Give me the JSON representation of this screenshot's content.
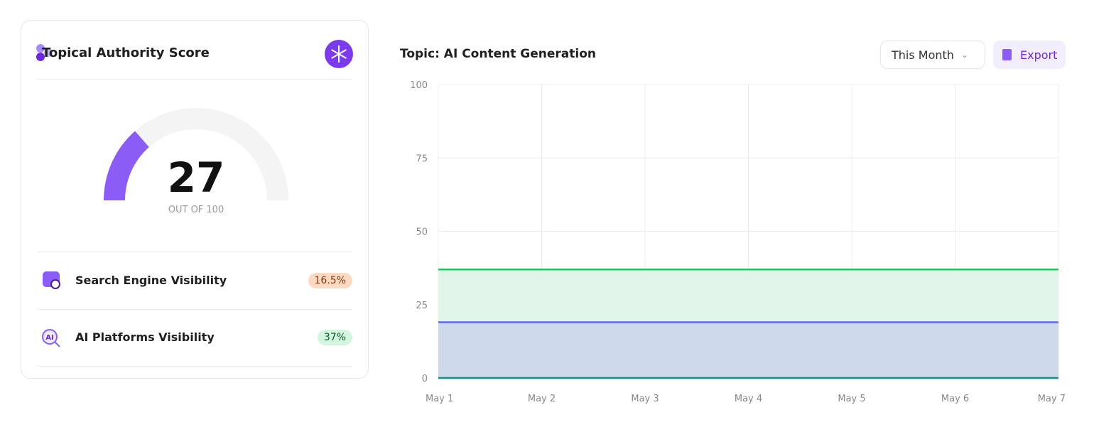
{
  "card": {
    "title": "Topical Authority Score",
    "gauge": {
      "value": 27,
      "min": 0,
      "max": 100,
      "caption": "OUT OF 100"
    },
    "rows": [
      {
        "label": "Search Engine Visibility",
        "badge": "16.5%"
      },
      {
        "label": "AI Platforms Visibility",
        "badge": "37%"
      }
    ]
  },
  "toolbar": {
    "period": "This Month",
    "export": "Export"
  },
  "chart_data": {
    "type": "area",
    "title": "Topic: AI Content Generation",
    "categories": [
      "May 1",
      "May 2",
      "May 3",
      "May 4",
      "May 5",
      "May 6",
      "May 7"
    ],
    "series": [
      {
        "color": "#22c55e",
        "fill": "#e1f5e9",
        "values": [
          37,
          37,
          37,
          37,
          37,
          37,
          37
        ]
      },
      {
        "color": "#6366f1",
        "fill": "#cdd8ea",
        "values": [
          19,
          19,
          19,
          19,
          19,
          19,
          19
        ]
      },
      {
        "color": "#0d9488",
        "fill": "none",
        "values": [
          0,
          0,
          0,
          0,
          0,
          0,
          0
        ]
      }
    ],
    "ylim": [
      0,
      100
    ],
    "yticks": [
      0,
      25,
      50,
      75,
      100
    ],
    "grid": true
  }
}
